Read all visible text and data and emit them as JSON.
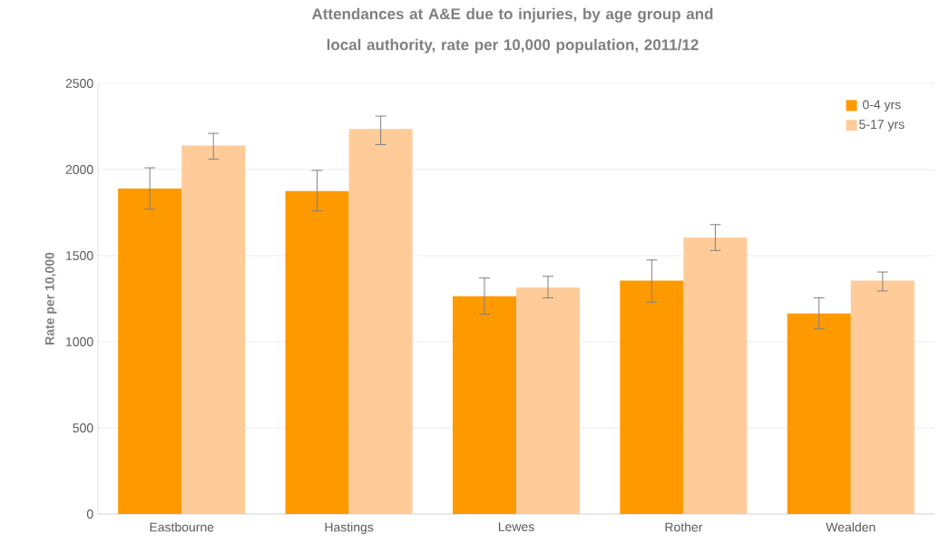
{
  "chart_data": {
    "type": "bar",
    "title": "Attendances at A&E due to injuries, by age group and local authority, rate per 10,000 population, 2011/12",
    "ylabel": "Rate per 10,000",
    "categories": [
      "Eastbourne",
      "Hastings",
      "Lewes",
      "Rother",
      "Wealden"
    ],
    "series": [
      {
        "name": "0-4 yrs",
        "color": "#ff9900",
        "values": [
          1890,
          1875,
          1265,
          1355,
          1165
        ],
        "errors": [
          [
            1770,
            2010
          ],
          [
            1760,
            1995
          ],
          [
            1160,
            1370
          ],
          [
            1230,
            1475
          ],
          [
            1075,
            1255
          ]
        ]
      },
      {
        "name": "5-17 yrs",
        "color": "#ffcc99",
        "values": [
          2140,
          2235,
          1315,
          1605,
          1355
        ],
        "errors": [
          [
            2060,
            2210
          ],
          [
            2145,
            2310
          ],
          [
            1255,
            1380
          ],
          [
            1530,
            1680
          ],
          [
            1295,
            1405
          ]
        ]
      }
    ],
    "ylim": [
      0,
      2500
    ],
    "yticks": [
      0,
      500,
      1000,
      1500,
      2000,
      2500
    ],
    "grid": "y",
    "legend": "top right"
  }
}
